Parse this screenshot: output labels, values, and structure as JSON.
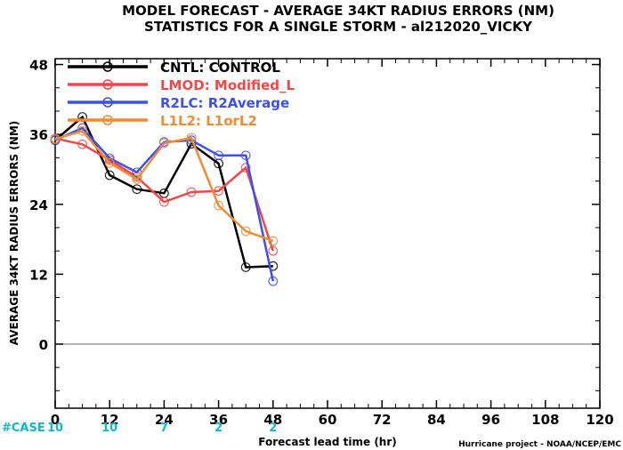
{
  "chart_data": {
    "type": "line",
    "title": "MODEL FORECAST - AVERAGE 34KT RADIUS ERRORS (NM)",
    "subtitle": "STATISTICS FOR A SINGLE STORM - al212020_VICKY",
    "xlabel": "Forecast lead time (hr)",
    "ylabel": "AVERAGE 34KT RADIUS ERRORS (NM)",
    "xlim": [
      0,
      120
    ],
    "ylim": [
      -11,
      49
    ],
    "xticks": [
      0,
      12,
      24,
      36,
      48,
      60,
      72,
      84,
      96,
      108,
      120
    ],
    "yticks": [
      0,
      12,
      24,
      36,
      48
    ],
    "grid": false,
    "legend_position": "top-left",
    "cases": {
      "label": "#CASE",
      "x": [
        0,
        12,
        24,
        36,
        48
      ],
      "values": [
        "10",
        "10",
        "7",
        "2",
        "2"
      ]
    },
    "credit": "Hurricane project - NOAA/NCEP/EMC",
    "series": [
      {
        "name": "CNTL: CONTROL",
        "color": "#000000",
        "x": [
          0,
          6,
          12,
          18,
          24,
          30,
          36,
          42,
          48
        ],
        "values": [
          35,
          39,
          29,
          26.6,
          25.9,
          34.4,
          31,
          13.2,
          13.4
        ]
      },
      {
        "name": "LMOD: Modified_L",
        "color": "#f04848",
        "x": [
          0,
          6,
          12,
          18,
          24,
          30,
          36,
          42,
          48
        ],
        "values": [
          35.3,
          34.3,
          31.6,
          28.7,
          24.4,
          26.1,
          26.3,
          30.3,
          16
        ]
      },
      {
        "name": "R2LC: R2Average",
        "color": "#3c50f0",
        "x": [
          0,
          6,
          12,
          18,
          24,
          30,
          36,
          42,
          48
        ],
        "values": [
          35,
          37.1,
          31.9,
          29.5,
          34.7,
          35,
          32.4,
          32.4,
          10.8
        ]
      },
      {
        "name": "L1L2: L1orL2",
        "color": "#f08c32",
        "x": [
          0,
          6,
          12,
          18,
          24,
          30,
          36,
          42,
          48
        ],
        "values": [
          35.2,
          36.6,
          31.1,
          28.3,
          34.5,
          35.4,
          23.8,
          19.4,
          17.7
        ]
      }
    ]
  }
}
